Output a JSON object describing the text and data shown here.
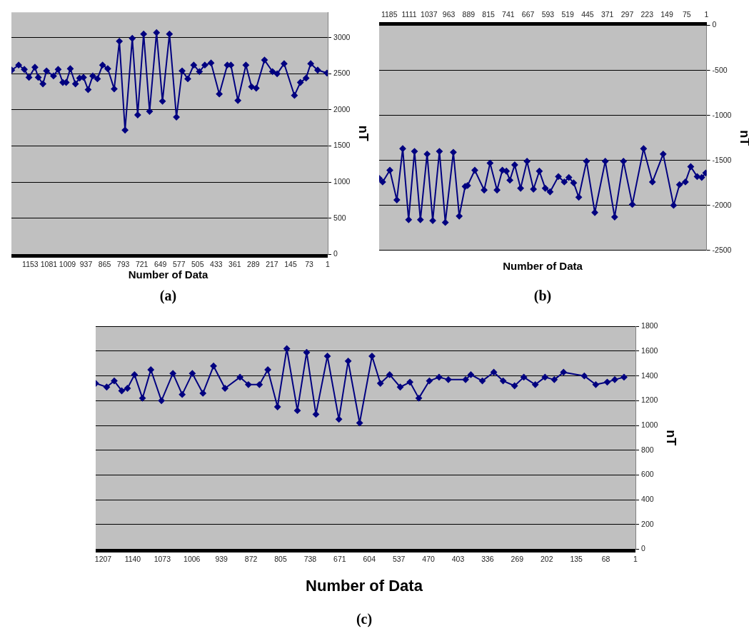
{
  "chart_data": [
    {
      "type": "line",
      "xlabel": "Number of Data",
      "ylabel": "nT",
      "annotations": [
        "(a)"
      ],
      "xlim": [
        1226,
        1
      ],
      "xticks": [
        1153,
        1081,
        1009,
        937,
        865,
        793,
        721,
        649,
        577,
        505,
        433,
        361,
        289,
        217,
        145,
        73,
        1
      ],
      "ylim": [
        0,
        3350
      ],
      "yticks": [
        0,
        500,
        1000,
        1500,
        2000,
        2500,
        3000
      ],
      "grid": "y",
      "marker": "diamond",
      "line_style": "solid",
      "x": [
        1225,
        1198,
        1176,
        1158,
        1135,
        1122,
        1104,
        1090,
        1063,
        1045,
        1027,
        1014,
        998,
        978,
        962,
        947,
        929,
        911,
        893,
        873,
        853,
        828,
        808,
        786,
        758,
        737,
        714,
        691,
        664,
        641,
        614,
        587,
        565,
        543,
        520,
        498,
        477,
        453,
        421,
        390,
        376,
        349,
        318,
        296,
        278,
        246,
        215,
        197,
        170,
        130,
        107,
        85,
        67,
        40,
        4
      ],
      "series": [
        {
          "color": "#000080",
          "values": [
            2550,
            2620,
            2560,
            2450,
            2590,
            2450,
            2360,
            2540,
            2470,
            2560,
            2380,
            2380,
            2570,
            2360,
            2440,
            2450,
            2280,
            2470,
            2430,
            2620,
            2570,
            2290,
            2950,
            1720,
            2990,
            1930,
            3050,
            1980,
            3070,
            2120,
            3050,
            1900,
            2540,
            2430,
            2620,
            2530,
            2620,
            2650,
            2220,
            2620,
            2620,
            2130,
            2620,
            2320,
            2300,
            2690,
            2530,
            2500,
            2640,
            2200,
            2380,
            2440,
            2640,
            2550,
            2510
          ]
        }
      ]
    },
    {
      "type": "line",
      "xlabel": "Number of Data",
      "ylabel": "nT",
      "annotations": [
        "(b)"
      ],
      "xlim": [
        1223,
        1
      ],
      "xticks": [
        1185,
        1111,
        1037,
        963,
        889,
        815,
        741,
        667,
        593,
        519,
        445,
        371,
        297,
        223,
        149,
        75,
        1
      ],
      "ylim": [
        -2500,
        0
      ],
      "yticks": [
        {
          "value": 0,
          "label": "0"
        },
        {
          "value": -500,
          "label": "-500"
        },
        {
          "value": -1000,
          "label": "-1000"
        },
        {
          "value": -1500,
          "label": "-1500"
        },
        {
          "value": -2000,
          "label": "-2000"
        },
        {
          "value": -2500,
          "label": "-2500"
        }
      ],
      "grid": "y",
      "marker": "diamond",
      "line_style": "solid",
      "x": [
        1223,
        1210,
        1183,
        1157,
        1135,
        1113,
        1091,
        1069,
        1044,
        1023,
        998,
        976,
        946,
        924,
        902,
        893,
        866,
        831,
        809,
        783,
        763,
        748,
        735,
        717,
        695,
        671,
        647,
        625,
        603,
        585,
        554,
        532,
        515,
        497,
        478,
        449,
        418,
        379,
        344,
        311,
        278,
        236,
        203,
        163,
        124,
        102,
        80,
        60,
        36,
        19,
        4
      ],
      "series": [
        {
          "color": "#000080",
          "values": [
            -1700,
            -1740,
            -1610,
            -1940,
            -1370,
            -2160,
            -1400,
            -2160,
            -1430,
            -2170,
            -1400,
            -2190,
            -1410,
            -2120,
            -1790,
            -1780,
            -1610,
            -1830,
            -1530,
            -1830,
            -1610,
            -1620,
            -1720,
            -1550,
            -1810,
            -1510,
            -1820,
            -1620,
            -1810,
            -1850,
            -1680,
            -1740,
            -1690,
            -1750,
            -1910,
            -1510,
            -2080,
            -1510,
            -2130,
            -1510,
            -1990,
            -1370,
            -1740,
            -1430,
            -2000,
            -1770,
            -1740,
            -1570,
            -1680,
            -1690,
            -1640
          ]
        }
      ]
    },
    {
      "type": "line",
      "xlabel": "Number of Data",
      "ylabel": "nT",
      "annotations": [
        "(c)"
      ],
      "xlim": [
        1224,
        1
      ],
      "xticks": [
        1207,
        1140,
        1073,
        1006,
        939,
        872,
        805,
        738,
        671,
        604,
        537,
        470,
        403,
        336,
        269,
        202,
        135,
        68,
        1
      ],
      "ylim": [
        0,
        1800
      ],
      "yticks": [
        0,
        200,
        400,
        600,
        800,
        1000,
        1200,
        1400,
        1600,
        1800
      ],
      "grid": "y",
      "marker": "diamond",
      "line_style": "solid",
      "x": [
        1224,
        1199,
        1182,
        1165,
        1152,
        1136,
        1118,
        1099,
        1075,
        1049,
        1028,
        1005,
        981,
        957,
        931,
        897,
        878,
        853,
        834,
        812,
        791,
        767,
        746,
        725,
        699,
        673,
        652,
        626,
        598,
        579,
        558,
        534,
        512,
        492,
        468,
        446,
        425,
        386,
        374,
        348,
        322,
        301,
        275,
        254,
        228,
        206,
        185,
        164,
        117,
        91,
        65,
        48,
        27
      ],
      "series": [
        {
          "color": "#000080",
          "values": [
            1340,
            1310,
            1360,
            1280,
            1300,
            1410,
            1220,
            1450,
            1200,
            1420,
            1250,
            1420,
            1260,
            1480,
            1300,
            1390,
            1330,
            1330,
            1450,
            1150,
            1620,
            1120,
            1590,
            1090,
            1560,
            1050,
            1520,
            1020,
            1560,
            1340,
            1410,
            1310,
            1350,
            1220,
            1360,
            1390,
            1370,
            1370,
            1410,
            1360,
            1430,
            1360,
            1320,
            1390,
            1330,
            1390,
            1370,
            1430,
            1400,
            1330,
            1350,
            1370,
            1390
          ]
        }
      ]
    }
  ]
}
